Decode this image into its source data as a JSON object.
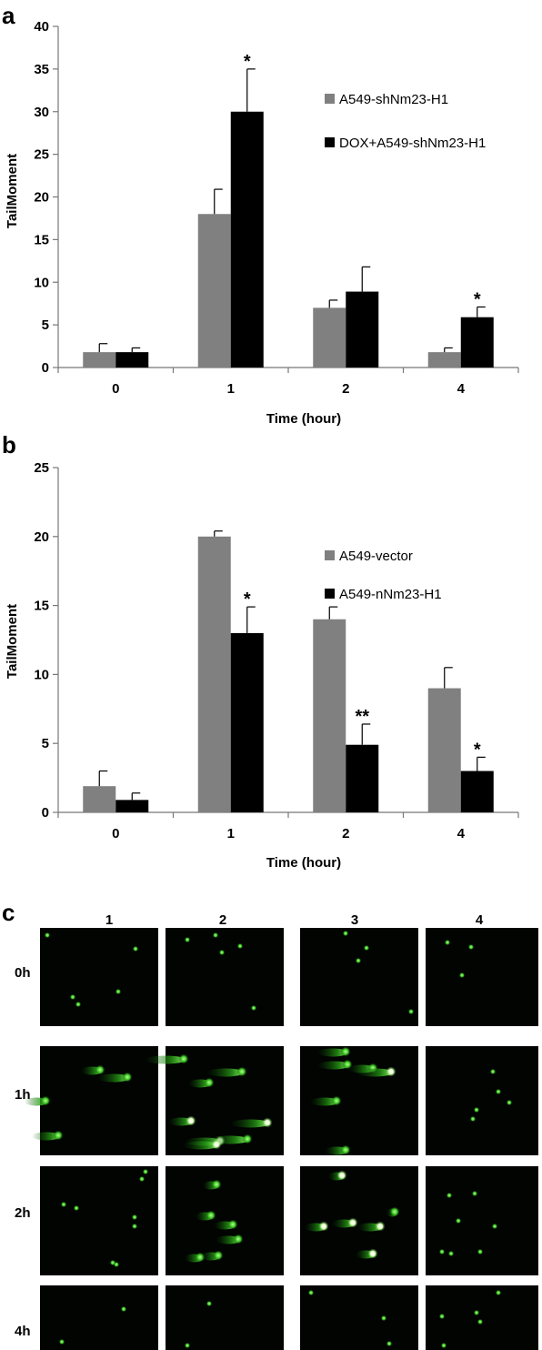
{
  "chart_data": [
    {
      "panel": "a",
      "type": "bar",
      "categories": [
        "0",
        "1",
        "2",
        "4"
      ],
      "xlabel": "Time (hour)",
      "ylabel": "TailMoment",
      "ylim": [
        0,
        40
      ],
      "yticks": [
        0,
        5,
        10,
        15,
        20,
        25,
        30,
        35,
        40
      ],
      "legend": "right",
      "grid": false,
      "series": [
        {
          "name": "A549-shNm23-H1",
          "color": "#808080",
          "values": [
            1.8,
            18,
            7,
            1.8
          ],
          "errors": [
            1.0,
            2.9,
            0.9,
            0.5
          ]
        },
        {
          "name": "DOX+A549-shNm23-H1",
          "color": "#000000",
          "values": [
            1.8,
            30,
            8.9,
            5.9
          ],
          "errors": [
            0.5,
            5.0,
            2.9,
            1.2
          ]
        }
      ],
      "annotations": [
        {
          "category": "1",
          "series": 1,
          "text": "*"
        },
        {
          "category": "4",
          "series": 1,
          "text": "*"
        }
      ]
    },
    {
      "panel": "b",
      "type": "bar",
      "categories": [
        "0",
        "1",
        "2",
        "4"
      ],
      "xlabel": "Time (hour)",
      "ylabel": "TailMoment",
      "ylim": [
        0,
        25
      ],
      "yticks": [
        0,
        5,
        10,
        15,
        20,
        25
      ],
      "legend": "right",
      "grid": false,
      "series": [
        {
          "name": "A549-vector",
          "color": "#808080",
          "values": [
            1.9,
            20,
            14,
            9
          ],
          "errors": [
            1.1,
            0.4,
            0.9,
            1.5
          ]
        },
        {
          "name": "A549-nNm23-H1",
          "color": "#000000",
          "values": [
            0.9,
            13,
            4.9,
            3
          ],
          "errors": [
            0.5,
            1.9,
            1.5,
            1.0
          ]
        }
      ],
      "annotations": [
        {
          "category": "1",
          "series": 1,
          "text": "*"
        },
        {
          "category": "2",
          "series": 1,
          "text": "**"
        },
        {
          "category": "4",
          "series": 1,
          "text": "*"
        }
      ]
    }
  ],
  "panel_c": {
    "letter": "c",
    "columns": [
      "1",
      "2",
      "3",
      "4"
    ],
    "rows": [
      "0h",
      "1h",
      "2h",
      "4h"
    ]
  }
}
